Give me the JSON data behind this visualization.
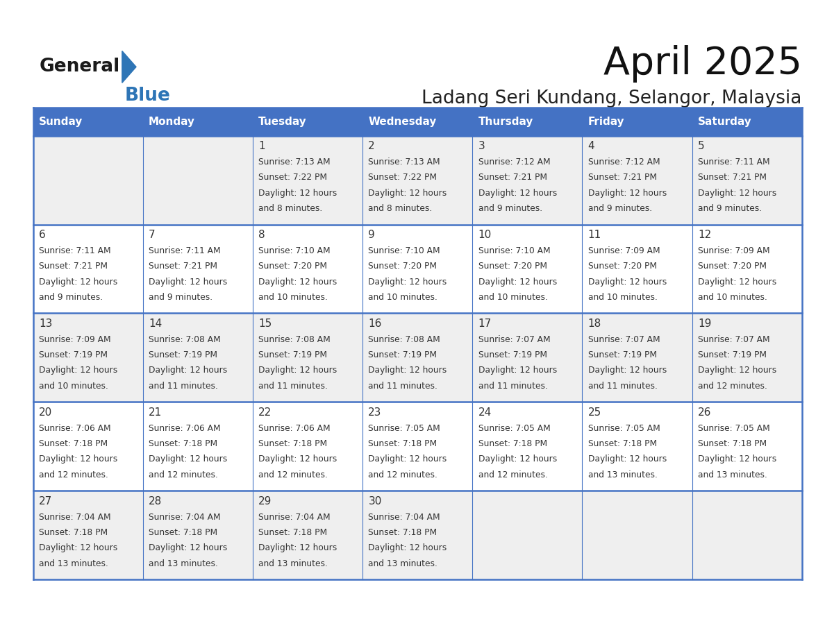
{
  "title": "April 2025",
  "subtitle": "Ladang Seri Kundang, Selangor, Malaysia",
  "days_of_week": [
    "Sunday",
    "Monday",
    "Tuesday",
    "Wednesday",
    "Thursday",
    "Friday",
    "Saturday"
  ],
  "header_bg": "#4472C4",
  "header_text_color": "#FFFFFF",
  "row_bg_odd": "#EFEFEF",
  "row_bg_even": "#FFFFFF",
  "cell_border_color": "#4472C4",
  "text_color": "#333333",
  "logo_general_color": "#1a1a1a",
  "logo_blue_color": "#2E75B6",
  "calendar_data": [
    [
      null,
      null,
      {
        "day": 1,
        "sunrise": "7:13 AM",
        "sunset": "7:22 PM",
        "daylight": "12 hours and 8 minutes."
      },
      {
        "day": 2,
        "sunrise": "7:13 AM",
        "sunset": "7:22 PM",
        "daylight": "12 hours and 8 minutes."
      },
      {
        "day": 3,
        "sunrise": "7:12 AM",
        "sunset": "7:21 PM",
        "daylight": "12 hours and 9 minutes."
      },
      {
        "day": 4,
        "sunrise": "7:12 AM",
        "sunset": "7:21 PM",
        "daylight": "12 hours and 9 minutes."
      },
      {
        "day": 5,
        "sunrise": "7:11 AM",
        "sunset": "7:21 PM",
        "daylight": "12 hours and 9 minutes."
      }
    ],
    [
      {
        "day": 6,
        "sunrise": "7:11 AM",
        "sunset": "7:21 PM",
        "daylight": "12 hours and 9 minutes."
      },
      {
        "day": 7,
        "sunrise": "7:11 AM",
        "sunset": "7:21 PM",
        "daylight": "12 hours and 9 minutes."
      },
      {
        "day": 8,
        "sunrise": "7:10 AM",
        "sunset": "7:20 PM",
        "daylight": "12 hours and 10 minutes."
      },
      {
        "day": 9,
        "sunrise": "7:10 AM",
        "sunset": "7:20 PM",
        "daylight": "12 hours and 10 minutes."
      },
      {
        "day": 10,
        "sunrise": "7:10 AM",
        "sunset": "7:20 PM",
        "daylight": "12 hours and 10 minutes."
      },
      {
        "day": 11,
        "sunrise": "7:09 AM",
        "sunset": "7:20 PM",
        "daylight": "12 hours and 10 minutes."
      },
      {
        "day": 12,
        "sunrise": "7:09 AM",
        "sunset": "7:20 PM",
        "daylight": "12 hours and 10 minutes."
      }
    ],
    [
      {
        "day": 13,
        "sunrise": "7:09 AM",
        "sunset": "7:19 PM",
        "daylight": "12 hours and 10 minutes."
      },
      {
        "day": 14,
        "sunrise": "7:08 AM",
        "sunset": "7:19 PM",
        "daylight": "12 hours and 11 minutes."
      },
      {
        "day": 15,
        "sunrise": "7:08 AM",
        "sunset": "7:19 PM",
        "daylight": "12 hours and 11 minutes."
      },
      {
        "day": 16,
        "sunrise": "7:08 AM",
        "sunset": "7:19 PM",
        "daylight": "12 hours and 11 minutes."
      },
      {
        "day": 17,
        "sunrise": "7:07 AM",
        "sunset": "7:19 PM",
        "daylight": "12 hours and 11 minutes."
      },
      {
        "day": 18,
        "sunrise": "7:07 AM",
        "sunset": "7:19 PM",
        "daylight": "12 hours and 11 minutes."
      },
      {
        "day": 19,
        "sunrise": "7:07 AM",
        "sunset": "7:19 PM",
        "daylight": "12 hours and 12 minutes."
      }
    ],
    [
      {
        "day": 20,
        "sunrise": "7:06 AM",
        "sunset": "7:18 PM",
        "daylight": "12 hours and 12 minutes."
      },
      {
        "day": 21,
        "sunrise": "7:06 AM",
        "sunset": "7:18 PM",
        "daylight": "12 hours and 12 minutes."
      },
      {
        "day": 22,
        "sunrise": "7:06 AM",
        "sunset": "7:18 PM",
        "daylight": "12 hours and 12 minutes."
      },
      {
        "day": 23,
        "sunrise": "7:05 AM",
        "sunset": "7:18 PM",
        "daylight": "12 hours and 12 minutes."
      },
      {
        "day": 24,
        "sunrise": "7:05 AM",
        "sunset": "7:18 PM",
        "daylight": "12 hours and 12 minutes."
      },
      {
        "day": 25,
        "sunrise": "7:05 AM",
        "sunset": "7:18 PM",
        "daylight": "12 hours and 13 minutes."
      },
      {
        "day": 26,
        "sunrise": "7:05 AM",
        "sunset": "7:18 PM",
        "daylight": "12 hours and 13 minutes."
      }
    ],
    [
      {
        "day": 27,
        "sunrise": "7:04 AM",
        "sunset": "7:18 PM",
        "daylight": "12 hours and 13 minutes."
      },
      {
        "day": 28,
        "sunrise": "7:04 AM",
        "sunset": "7:18 PM",
        "daylight": "12 hours and 13 minutes."
      },
      {
        "day": 29,
        "sunrise": "7:04 AM",
        "sunset": "7:18 PM",
        "daylight": "12 hours and 13 minutes."
      },
      {
        "day": 30,
        "sunrise": "7:04 AM",
        "sunset": "7:18 PM",
        "daylight": "12 hours and 13 minutes."
      },
      null,
      null,
      null
    ]
  ],
  "fig_width": 11.88,
  "fig_height": 9.18
}
